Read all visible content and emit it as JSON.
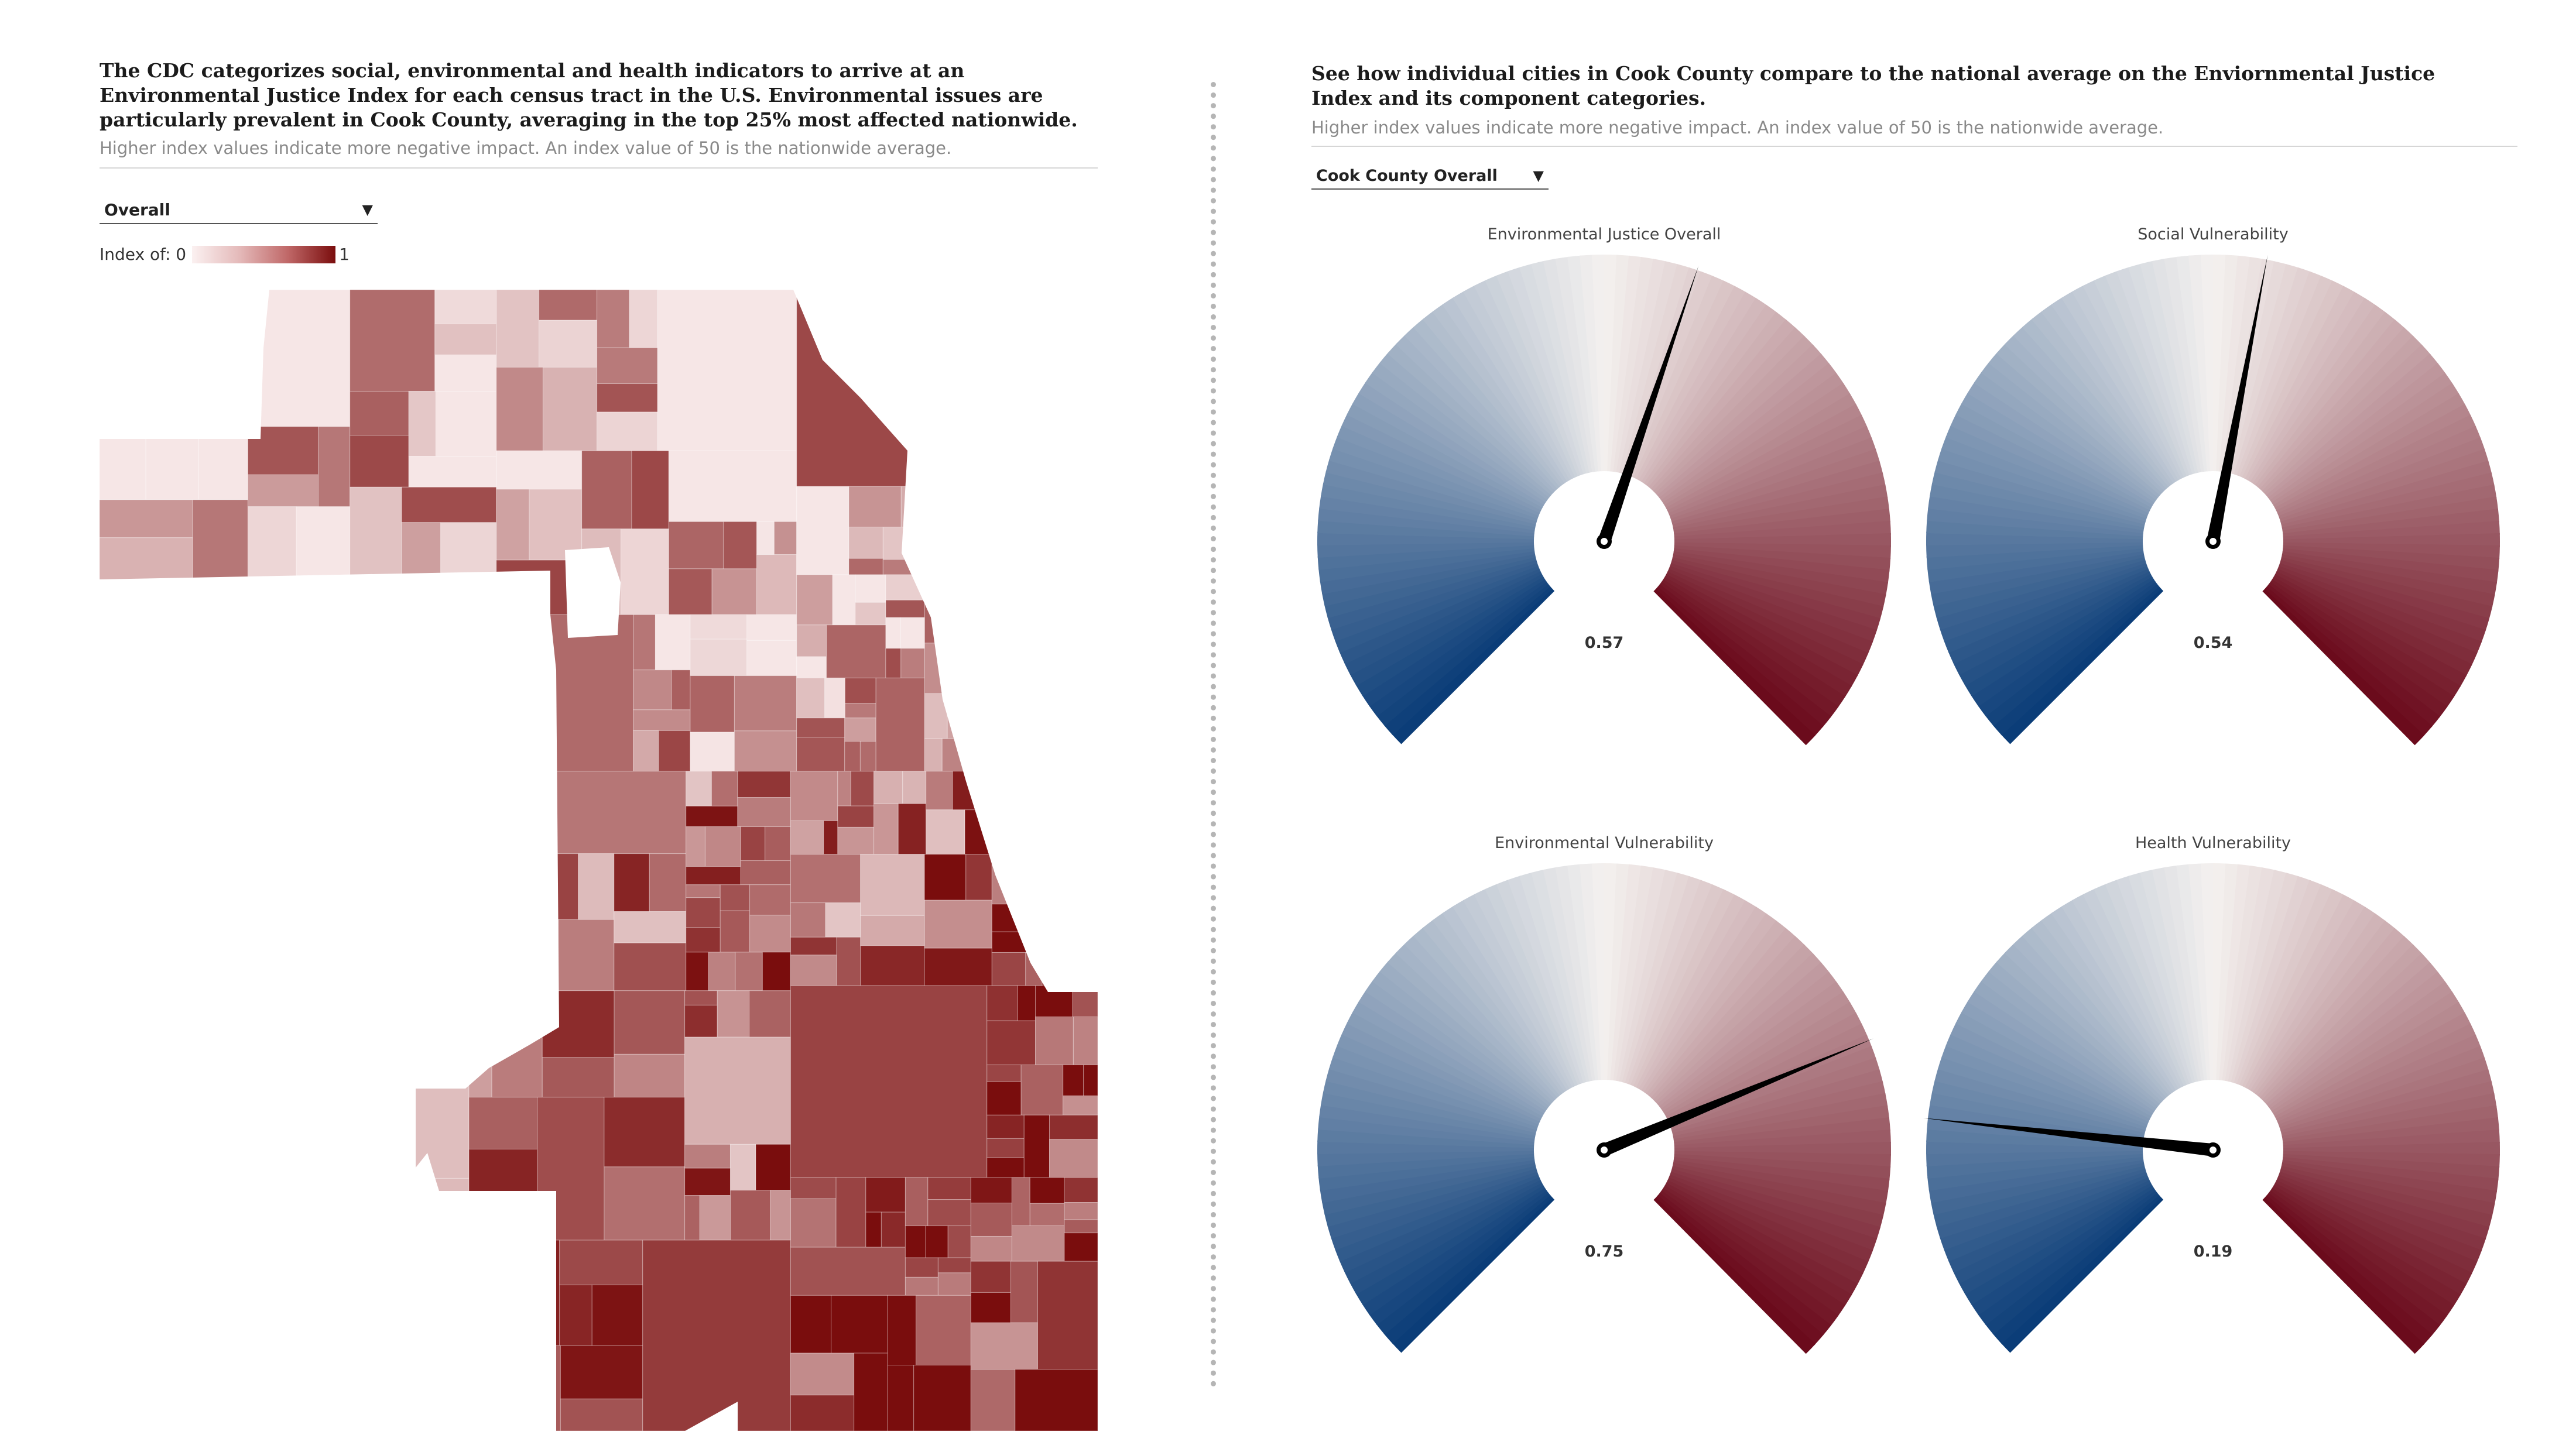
{
  "left": {
    "headline": "The CDC categorizes social, environmental and health indicators to arrive at an Environmental Justice Index for each census tract in the U.S. Environmental issues are particularly prevalent in Cook County, averaging in the top 25% most affected nationwide.",
    "subtitle": "Higher index values indicate more negative impact. An index value of 50 is the nationwide average.",
    "dropdown_value": "Overall",
    "legend_label": "Index of: 0",
    "legend_max": "1",
    "ramp_colors": [
      "#fbf1f1",
      "#e4b9b9",
      "#c06868",
      "#7a0d0d"
    ]
  },
  "right": {
    "headline": "See how individual cities in Cook County compare to the national average on the Enviornmental Justice Index and its component categories.",
    "subtitle": "Higher index values indicate more negative impact. An index value of 50 is the nationwide average.",
    "dropdown_value": "Cook County Overall",
    "gauges": [
      {
        "title": "Environmental Justice Overall",
        "value": 0.57,
        "value_label": "0.57"
      },
      {
        "title": "Social Vulnerability",
        "value": 0.54,
        "value_label": "0.54"
      },
      {
        "title": "Environmental Vulnerability",
        "value": 0.75,
        "value_label": "0.75"
      },
      {
        "title": "Health Vulnerability",
        "value": 0.19,
        "value_label": "0.19"
      }
    ]
  },
  "colors": {
    "map_dark": "#7a0d0d",
    "map_light": "#f6e6e6",
    "gauge_low": "#0b3d78",
    "gauge_mid": "#f4f1ef",
    "gauge_high": "#6b0b1c",
    "needle": "#000000"
  }
}
